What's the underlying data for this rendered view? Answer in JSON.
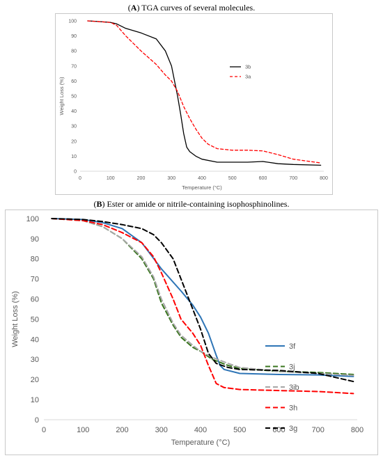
{
  "captions": {
    "a_label": "A",
    "a_text": " TGA curves of several molecules.",
    "b_label": "B",
    "b_text": " Ester or amide or nitrile-containing isophosphinolines."
  },
  "chart_data": [
    {
      "type": "line",
      "title": "",
      "xlabel": "Temperature (°C)",
      "ylabel": "Weight Loss (%)",
      "xlim": [
        0,
        800
      ],
      "ylim": [
        0,
        100
      ],
      "xticks": [
        0,
        100,
        200,
        300,
        400,
        500,
        600,
        700,
        800
      ],
      "yticks": [
        0,
        10,
        20,
        30,
        40,
        50,
        60,
        70,
        80,
        90,
        100
      ],
      "grid": false,
      "legend_position": "right",
      "series": [
        {
          "name": "3b",
          "color": "#000000",
          "dash": "solid",
          "x": [
            25,
            50,
            100,
            120,
            150,
            200,
            250,
            280,
            300,
            320,
            330,
            340,
            350,
            360,
            380,
            400,
            450,
            500,
            550,
            600,
            650,
            700,
            790
          ],
          "y": [
            100,
            99.7,
            99,
            98,
            95,
            92,
            88,
            80,
            70,
            50,
            38,
            25,
            16,
            13,
            10,
            8,
            6,
            6,
            6,
            6.5,
            5,
            4.5,
            4
          ]
        },
        {
          "name": "3a",
          "color": "#ff0000",
          "dash": "dashed",
          "x": [
            25,
            100,
            120,
            150,
            200,
            250,
            280,
            300,
            320,
            340,
            360,
            380,
            400,
            420,
            450,
            500,
            550,
            600,
            650,
            700,
            790
          ],
          "y": [
            100,
            99,
            97,
            90,
            80,
            71,
            64,
            60,
            53,
            43,
            35,
            28,
            22,
            18,
            15,
            14,
            14,
            13.5,
            11,
            8,
            5.5
          ]
        }
      ]
    },
    {
      "type": "line",
      "title": "",
      "xlabel": "Temperature (°C)",
      "ylabel": "Weight Loss (%)",
      "xlim": [
        0,
        800
      ],
      "ylim": [
        0,
        100
      ],
      "xticks": [
        0,
        100,
        200,
        300,
        400,
        500,
        600,
        700,
        800
      ],
      "yticks": [
        0,
        10,
        20,
        30,
        40,
        50,
        60,
        70,
        80,
        90,
        100
      ],
      "grid": false,
      "legend_position": "right",
      "series": [
        {
          "name": "3f",
          "color": "#2e75b6",
          "dash": "solid",
          "x": [
            20,
            100,
            150,
            200,
            250,
            300,
            350,
            380,
            400,
            420,
            440,
            450,
            460,
            500,
            600,
            700,
            790
          ],
          "y": [
            100,
            99.5,
            98,
            95,
            88,
            75,
            64,
            57,
            51,
            43,
            32,
            27,
            25,
            23,
            22.5,
            22.3,
            21.5
          ]
        },
        {
          "name": "3j",
          "color": "#38761d",
          "dash": "dashed",
          "x": [
            20,
            100,
            150,
            200,
            250,
            280,
            300,
            330,
            350,
            380,
            400,
            430,
            470,
            500,
            600,
            700,
            790
          ],
          "y": [
            100,
            99,
            96,
            90,
            80,
            70,
            58,
            47,
            41,
            36,
            34,
            30,
            27,
            25.5,
            24,
            23.5,
            22.5
          ]
        },
        {
          "name": "3ib",
          "color": "#a6a6a6",
          "dash": "dashed",
          "x": [
            20,
            100,
            150,
            200,
            250,
            280,
            300,
            330,
            350,
            380,
            400,
            430,
            470,
            500,
            600,
            700,
            790
          ],
          "y": [
            100,
            99,
            96,
            90,
            81,
            71,
            60,
            48,
            42,
            37,
            34,
            31,
            28,
            26,
            24,
            23,
            22
          ]
        },
        {
          "name": "3h",
          "color": "#ff0000",
          "dash": "dashed",
          "x": [
            20,
            100,
            150,
            200,
            250,
            280,
            300,
            330,
            350,
            380,
            400,
            420,
            440,
            460,
            500,
            600,
            700,
            790
          ],
          "y": [
            100,
            99,
            97,
            93,
            88,
            81,
            73,
            60,
            50,
            43,
            37,
            27,
            18,
            16,
            15,
            14.5,
            14,
            13
          ]
        },
        {
          "name": "3g",
          "color": "#000000",
          "dash": "dashed",
          "x": [
            20,
            100,
            150,
            200,
            250,
            280,
            300,
            330,
            350,
            380,
            400,
            420,
            440,
            470,
            500,
            600,
            700,
            790
          ],
          "y": [
            100,
            99.5,
            98.5,
            97,
            95,
            92,
            88,
            80,
            70,
            55,
            45,
            33,
            28,
            26,
            25,
            24.5,
            23,
            19
          ]
        }
      ]
    }
  ]
}
